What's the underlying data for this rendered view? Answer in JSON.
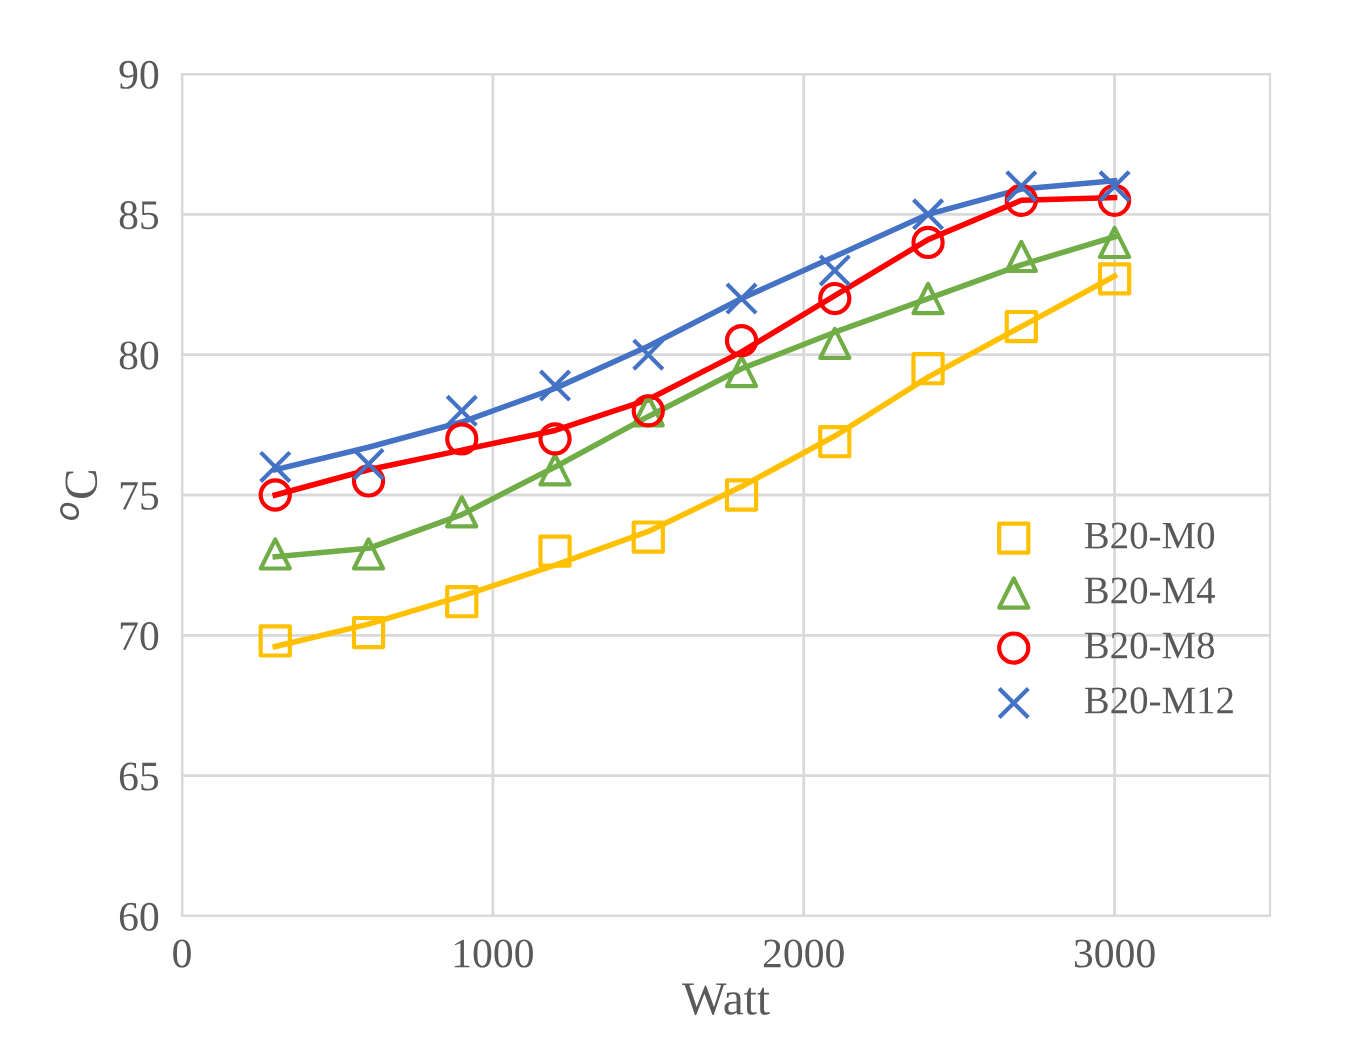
{
  "chart_data": {
    "type": "scatter",
    "xlabel": "Watt",
    "ylabel": "$^{o}$C",
    "x": [
      300,
      600,
      900,
      1200,
      1500,
      1800,
      2100,
      2400,
      2700,
      3000
    ],
    "xlim": [
      0,
      3500
    ],
    "xticks": [
      0,
      1000,
      2000,
      3000
    ],
    "ylim": [
      60,
      90
    ],
    "yticks": [
      60,
      65,
      70,
      75,
      80,
      85,
      90
    ],
    "grid": true,
    "legend": "right",
    "series": [
      {
        "name": "B20-M0",
        "color": "#ffc000",
        "marker": "square",
        "values": [
          69.8,
          70.1,
          71.2,
          73.0,
          73.5,
          75.0,
          76.9,
          79.5,
          81.0,
          82.7
        ]
      },
      {
        "name": "B20-M4",
        "color": "#70ad47",
        "marker": "triangle",
        "values": [
          72.9,
          72.9,
          74.4,
          75.9,
          78.0,
          79.4,
          80.4,
          82.0,
          83.5,
          84.0
        ]
      },
      {
        "name": "B20-M8",
        "color": "#ff0000",
        "marker": "circle",
        "values": [
          75.0,
          75.5,
          77.0,
          77.0,
          78.0,
          80.5,
          82.0,
          84.0,
          85.5,
          85.5
        ]
      },
      {
        "name": "B20-M12",
        "color": "#4472c4",
        "marker": "cross",
        "values": [
          76.0,
          76.1,
          78.0,
          78.9,
          80.0,
          82.0,
          83.0,
          85.0,
          86.0,
          86.0
        ]
      },
      {
        "type": "line",
        "color": "#ffc000",
        "values": [
          69.6,
          70.4,
          71.4,
          72.5,
          73.7,
          75.3,
          77.1,
          79.2,
          81.0,
          82.8
        ]
      },
      {
        "type": "line",
        "color": "#70ad47",
        "values": [
          72.8,
          73.1,
          74.3,
          76.0,
          77.8,
          79.5,
          80.8,
          82.0,
          83.2,
          84.2
        ]
      },
      {
        "type": "line",
        "color": "#ff0000",
        "values": [
          75.0,
          75.9,
          76.6,
          77.3,
          78.4,
          80.1,
          82.1,
          84.1,
          85.5,
          85.6
        ]
      },
      {
        "type": "line",
        "color": "#4472c4",
        "values": [
          75.9,
          76.7,
          77.6,
          78.8,
          80.3,
          82.0,
          83.5,
          85.0,
          85.9,
          86.2
        ]
      }
    ]
  }
}
